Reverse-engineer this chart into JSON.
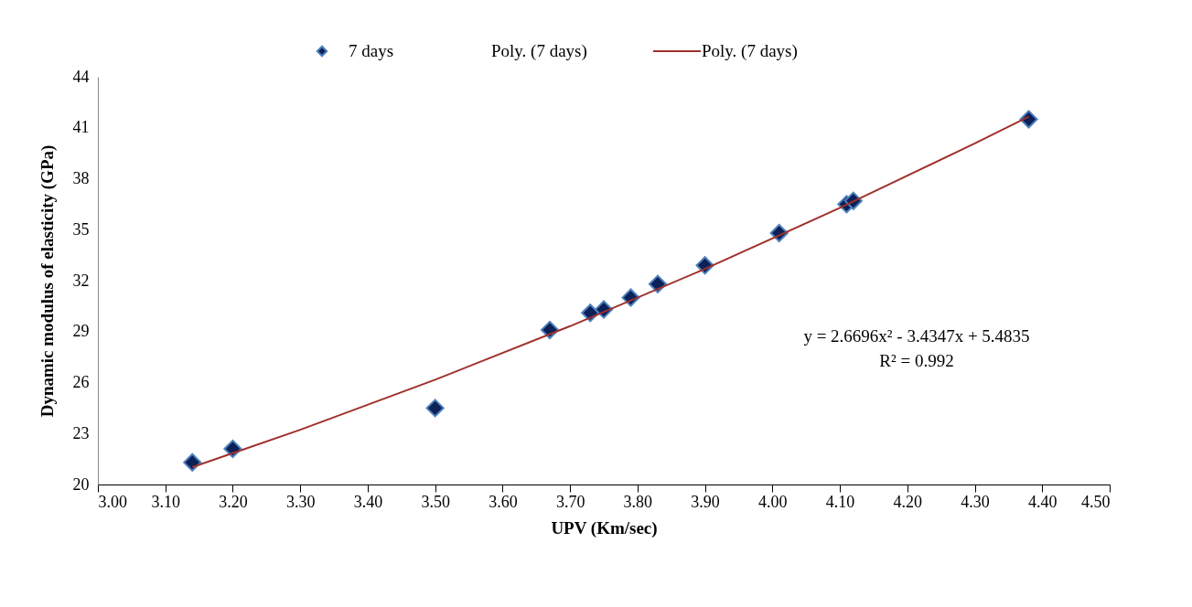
{
  "chart_data": {
    "type": "scatter",
    "xlabel": "UPV (Km/sec)",
    "ylabel": "Dynamic modulus of elasticity (GPa)",
    "xlim": [
      3.0,
      4.5
    ],
    "xticks": [
      {
        "value": 3.0,
        "label": "3.00"
      },
      {
        "value": 3.1,
        "label": "3.10"
      },
      {
        "value": 3.2,
        "label": "3.20"
      },
      {
        "value": 3.3,
        "label": "3.30"
      },
      {
        "value": 3.4,
        "label": "3.40"
      },
      {
        "value": 3.5,
        "label": "3.50"
      },
      {
        "value": 3.6,
        "label": "3.60"
      },
      {
        "value": 3.7,
        "label": "3.70"
      },
      {
        "value": 3.8,
        "label": "3.80"
      },
      {
        "value": 3.9,
        "label": "3.90"
      },
      {
        "value": 4.0,
        "label": "4.00"
      },
      {
        "value": 4.1,
        "label": "4.10"
      },
      {
        "value": 4.2,
        "label": "4.20"
      },
      {
        "value": 4.3,
        "label": "4.30"
      },
      {
        "value": 4.4,
        "label": "4.40"
      },
      {
        "value": 4.5,
        "label": "4.50"
      }
    ],
    "ylim": [
      20,
      44
    ],
    "yticks": [
      20,
      23,
      26,
      29,
      32,
      35,
      38,
      41,
      44
    ],
    "grid": false,
    "legend": "top",
    "series": [
      {
        "name": "7 days",
        "type": "scatter",
        "marker": "diamond",
        "color": "#0b2158",
        "x": [
          3.14,
          3.2,
          3.5,
          3.67,
          3.73,
          3.75,
          3.79,
          3.83,
          3.9,
          4.01,
          4.11,
          4.12,
          4.38
        ],
        "values": [
          21.3,
          22.1,
          24.5,
          29.1,
          30.1,
          30.3,
          31.0,
          31.8,
          32.9,
          34.8,
          36.5,
          36.7,
          41.5
        ]
      },
      {
        "name": "Poly. (7 days)",
        "type": "line",
        "color": "#a0302b",
        "line_style": "solid",
        "x": [
          3.14,
          3.3,
          3.5,
          3.7,
          3.9,
          4.1,
          4.3,
          4.38
        ],
        "values": [
          21.02,
          23.22,
          26.17,
          29.32,
          32.69,
          36.28,
          40.08,
          41.65
        ]
      }
    ],
    "annotations": [
      "Poly. (7 days)",
      "y = 2.6696x² - 3.4347x + 5.4835",
      "R² = 0.992"
    ]
  }
}
